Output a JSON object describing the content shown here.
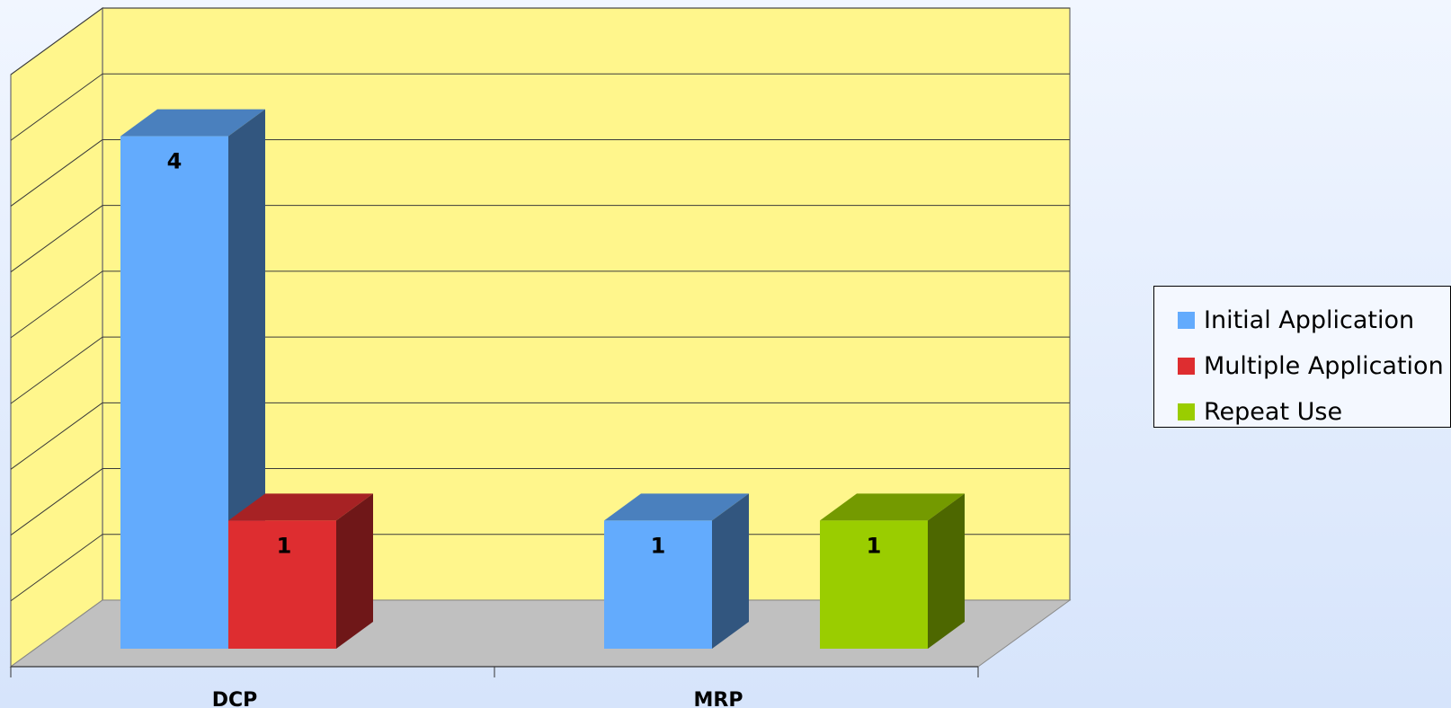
{
  "chart_data": {
    "type": "bar",
    "title": "",
    "xlabel": "",
    "ylabel": "",
    "ylim": [
      0,
      4.5
    ],
    "categories": [
      "DCP",
      "MRP"
    ],
    "series": [
      {
        "name": "Initial Application",
        "color": "#63abfd",
        "values": [
          4,
          1
        ]
      },
      {
        "name": "Multiple Application",
        "color": "#de2d30",
        "values": [
          1,
          null
        ]
      },
      {
        "name": "Repeat Use",
        "color": "#9acd00",
        "values": [
          null,
          1
        ]
      }
    ],
    "data_labels": true,
    "grid": true,
    "legend_position": "right",
    "colors": {
      "wall": "#fff68c",
      "floor": "#c0c0c0",
      "background": "#e6eefc"
    }
  }
}
